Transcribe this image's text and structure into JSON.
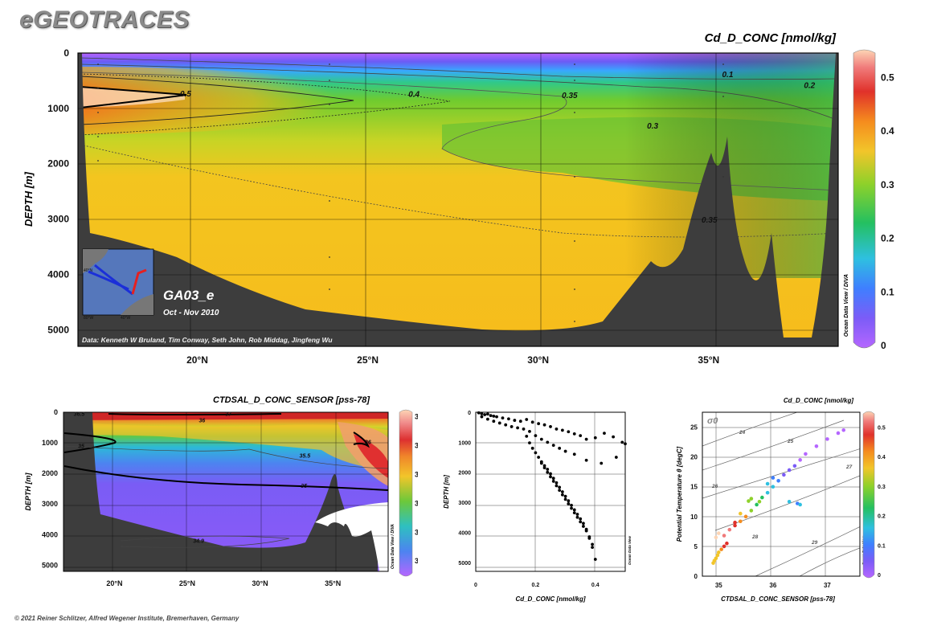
{
  "brand": "eGEOTRACES",
  "copyright": "© 2021 Reiner Schlitzer, Alfred Wegener Institute, Bremerhaven, Germany",
  "chart_data": [
    {
      "id": "main_section",
      "type": "heatmap",
      "title": "Cd_D_CONC [nmol/kg]",
      "ylabel": "DEPTH [m]",
      "xlabel": "",
      "x_ticks": [
        "20°N",
        "25°N",
        "30°N",
        "35°N"
      ],
      "x_tick_values": [
        20,
        25,
        30,
        35
      ],
      "xlim": [
        16.5,
        38.8
      ],
      "y_ticks": [
        "0",
        "1000",
        "2000",
        "3000",
        "4000",
        "5000"
      ],
      "y_tick_values": [
        0,
        1000,
        2000,
        3000,
        4000,
        5000
      ],
      "ylim": [
        0,
        5300
      ],
      "colorbar_ticks": [
        "0",
        "0.1",
        "0.2",
        "0.3",
        "0.4",
        "0.5"
      ],
      "colorbar_values": [
        0,
        0.1,
        0.2,
        0.3,
        0.4,
        0.5
      ],
      "contour_labels": [
        {
          "text": "0.5",
          "x": 16.5,
          "depth": 740
        },
        {
          "text": "0.4",
          "x": 23.2,
          "depth": 750
        },
        {
          "text": "0.35",
          "x": 27.7,
          "depth": 770
        },
        {
          "text": "0.3",
          "x": 30.2,
          "depth": 1320
        },
        {
          "text": "0.1",
          "x": 32.4,
          "depth": 390
        },
        {
          "text": "0.2",
          "x": 34.8,
          "depth": 590
        },
        {
          "text": "0.35",
          "x": 31.8,
          "depth": 3020
        }
      ],
      "cruise": "GA03_e",
      "dates": "Oct - Nov 2010",
      "credits": "Data: Kenneth W Bruland, Tim Conway, Seth John, Rob Middag, Jingfeng Wu",
      "watermark": "Ocean Data View / DIVA"
    },
    {
      "id": "salinity_section",
      "type": "heatmap",
      "title": "CTDSAL_D_CONC_SENSOR [pss-78]",
      "ylabel": "DEPTH [m]",
      "x_ticks": [
        "20°N",
        "25°N",
        "30°N",
        "35°N"
      ],
      "x_tick_values": [
        20,
        25,
        30,
        35
      ],
      "xlim": [
        16.5,
        38.8
      ],
      "y_ticks": [
        "0",
        "1000",
        "2000",
        "3000",
        "4000",
        "5000"
      ],
      "y_tick_values": [
        0,
        1000,
        2000,
        3000,
        4000,
        5000
      ],
      "ylim": [
        0,
        5200
      ],
      "colorbar_ticks": [
        "35",
        "35.5",
        "36",
        "36.5",
        "37",
        "37.5"
      ],
      "colorbar_values": [
        35,
        35.5,
        36,
        36.5,
        37,
        37.5
      ],
      "contour_labels": [
        {
          "text": "36.5",
          "x": 17.2,
          "depth": 60
        },
        {
          "text": "37",
          "x": 27.6,
          "depth": 60
        },
        {
          "text": "36",
          "x": 25.8,
          "depth": 280
        },
        {
          "text": "35",
          "x": 17.5,
          "depth": 1120
        },
        {
          "text": "35.5",
          "x": 32.7,
          "depth": 1430
        },
        {
          "text": "36",
          "x": 37.2,
          "depth": 980
        },
        {
          "text": "35",
          "x": 32.8,
          "depth": 2420
        },
        {
          "text": "34.9",
          "x": 25.4,
          "depth": 4220
        }
      ],
      "watermark": "Ocean Data View / DIVA"
    },
    {
      "id": "profile_scatter",
      "type": "scatter",
      "title": "",
      "xlabel": "Cd_D_CONC [nmol/kg]",
      "ylabel": "DEPTH [m]",
      "xlim": [
        0,
        0.5
      ],
      "ylim": [
        5300,
        0
      ],
      "x_ticks": [
        "0",
        "0.2",
        "0.4"
      ],
      "x_tick_values": [
        0,
        0.2,
        0.4
      ],
      "y_ticks": [
        "0",
        "1000",
        "2000",
        "3000",
        "4000",
        "5000"
      ],
      "y_tick_values": [
        0,
        1000,
        2000,
        3000,
        4000,
        5000
      ],
      "watermark": "Ocean Data View",
      "x": [
        0.01,
        0.02,
        0.03,
        0.04,
        0.05,
        0.06,
        0.07,
        0.09,
        0.11,
        0.13,
        0.15,
        0.17,
        0.19,
        0.21,
        0.23,
        0.25,
        0.27,
        0.29,
        0.31,
        0.33,
        0.35,
        0.37,
        0.4,
        0.43,
        0.46,
        0.49,
        0.02,
        0.04,
        0.06,
        0.08,
        0.1,
        0.12,
        0.14,
        0.16,
        0.18,
        0.2,
        0.22,
        0.24,
        0.26,
        0.28,
        0.3,
        0.33,
        0.37,
        0.42,
        0.47,
        0.5,
        0.17,
        0.18,
        0.19,
        0.2,
        0.21,
        0.22,
        0.23,
        0.24,
        0.25,
        0.26,
        0.27,
        0.28,
        0.29,
        0.3,
        0.31,
        0.32,
        0.33,
        0.34,
        0.35,
        0.36,
        0.37,
        0.38,
        0.39,
        0.22,
        0.23,
        0.24,
        0.25,
        0.26,
        0.27,
        0.28,
        0.29,
        0.3,
        0.31,
        0.32,
        0.33,
        0.34,
        0.35,
        0.36,
        0.37,
        0.38,
        0.39,
        0.4
      ],
      "y": [
        20,
        50,
        80,
        60,
        110,
        130,
        150,
        190,
        220,
        270,
        300,
        240,
        330,
        380,
        420,
        480,
        560,
        600,
        650,
        720,
        780,
        900,
        850,
        700,
        820,
        1000,
        150,
        230,
        300,
        360,
        420,
        480,
        520,
        560,
        640,
        780,
        900,
        1000,
        1100,
        1200,
        1300,
        1400,
        1600,
        1700,
        1500,
        1050,
        800,
        1020,
        1200,
        1350,
        1500,
        1650,
        1780,
        1900,
        2050,
        2200,
        2350,
        2500,
        2650,
        2800,
        2950,
        3100,
        3250,
        3400,
        3550,
        3700,
        3900,
        4150,
        4400,
        1700,
        1850,
        2000,
        2150,
        2300,
        2450,
        2600,
        2750,
        2900,
        3050,
        3200,
        3350,
        3500,
        3650,
        3800,
        3950,
        4200,
        4500,
        4900
      ]
    },
    {
      "id": "ts_diagram",
      "type": "scatter",
      "title": "Cd_D_CONC [nmol/kg]",
      "xlabel": "CTDSAL_D_CONC_SENSOR [pss-78]",
      "ylabel": "Potential Temperature θ [degC]",
      "xlim": [
        34.7,
        37.6
      ],
      "ylim": [
        0,
        27.5
      ],
      "x_ticks": [
        "35",
        "36",
        "37"
      ],
      "x_tick_values": [
        35,
        36,
        37
      ],
      "y_ticks": [
        "0",
        "5",
        "10",
        "15",
        "20",
        "25"
      ],
      "y_tick_values": [
        0,
        5,
        10,
        15,
        20,
        25
      ],
      "colorbar_ticks": [
        "0",
        "0.1",
        "0.2",
        "0.3",
        "0.4",
        "0.5"
      ],
      "colorbar_values": [
        0,
        0.1,
        0.2,
        0.3,
        0.4,
        0.5
      ],
      "isopycnal_symbol": "σ0",
      "isopycnal_labels": [
        "24",
        "25",
        "26",
        "27",
        "28",
        "29"
      ],
      "watermark": "Ocean Data View",
      "points": [
        {
          "s": 34.9,
          "t": 2.2,
          "c": 0.33
        },
        {
          "s": 34.92,
          "t": 2.6,
          "c": 0.34
        },
        {
          "s": 34.95,
          "t": 3.0,
          "c": 0.35
        },
        {
          "s": 34.98,
          "t": 3.5,
          "c": 0.36
        },
        {
          "s": 35.0,
          "t": 4.0,
          "c": 0.37
        },
        {
          "s": 35.05,
          "t": 4.5,
          "c": 0.4
        },
        {
          "s": 35.1,
          "t": 5.0,
          "c": 0.43
        },
        {
          "s": 35.15,
          "t": 5.5,
          "c": 0.45
        },
        {
          "s": 34.95,
          "t": 6.5,
          "c": 0.5
        },
        {
          "s": 35.0,
          "t": 7.2,
          "c": 0.52
        },
        {
          "s": 35.2,
          "t": 7.8,
          "c": 0.48
        },
        {
          "s": 35.3,
          "t": 8.5,
          "c": 0.46
        },
        {
          "s": 35.4,
          "t": 9.2,
          "c": 0.42
        },
        {
          "s": 35.5,
          "t": 10.0,
          "c": 0.38
        },
        {
          "s": 35.6,
          "t": 11.0,
          "c": 0.3
        },
        {
          "s": 35.7,
          "t": 12.0,
          "c": 0.25
        },
        {
          "s": 35.75,
          "t": 12.5,
          "c": 0.27
        },
        {
          "s": 35.8,
          "t": 13.2,
          "c": 0.22
        },
        {
          "s": 35.9,
          "t": 14.0,
          "c": 0.2
        },
        {
          "s": 36.0,
          "t": 15.0,
          "c": 0.15
        },
        {
          "s": 36.1,
          "t": 16.0,
          "c": 0.1
        },
        {
          "s": 36.2,
          "t": 17.0,
          "c": 0.08
        },
        {
          "s": 36.3,
          "t": 17.8,
          "c": 0.06
        },
        {
          "s": 36.4,
          "t": 18.5,
          "c": 0.05
        },
        {
          "s": 36.5,
          "t": 19.5,
          "c": 0.03
        },
        {
          "s": 36.6,
          "t": 20.5,
          "c": 0.02
        },
        {
          "s": 36.8,
          "t": 21.8,
          "c": 0.01
        },
        {
          "s": 37.0,
          "t": 23.0,
          "c": 0.01
        },
        {
          "s": 37.2,
          "t": 24.0,
          "c": 0.0
        },
        {
          "s": 37.3,
          "t": 24.5,
          "c": 0.0
        },
        {
          "s": 36.3,
          "t": 12.5,
          "c": 0.15
        },
        {
          "s": 36.45,
          "t": 12.2,
          "c": 0.14
        },
        {
          "s": 36.5,
          "t": 12.0,
          "c": 0.16
        },
        {
          "s": 35.6,
          "t": 13.0,
          "c": 0.28
        },
        {
          "s": 35.55,
          "t": 12.6,
          "c": 0.32
        },
        {
          "s": 35.9,
          "t": 15.5,
          "c": 0.18
        },
        {
          "s": 36.0,
          "t": 16.5,
          "c": 0.12
        },
        {
          "s": 35.4,
          "t": 10.5,
          "c": 0.36
        },
        {
          "s": 35.3,
          "t": 9.0,
          "c": 0.44
        },
        {
          "s": 35.1,
          "t": 6.8,
          "c": 0.47
        }
      ]
    }
  ]
}
